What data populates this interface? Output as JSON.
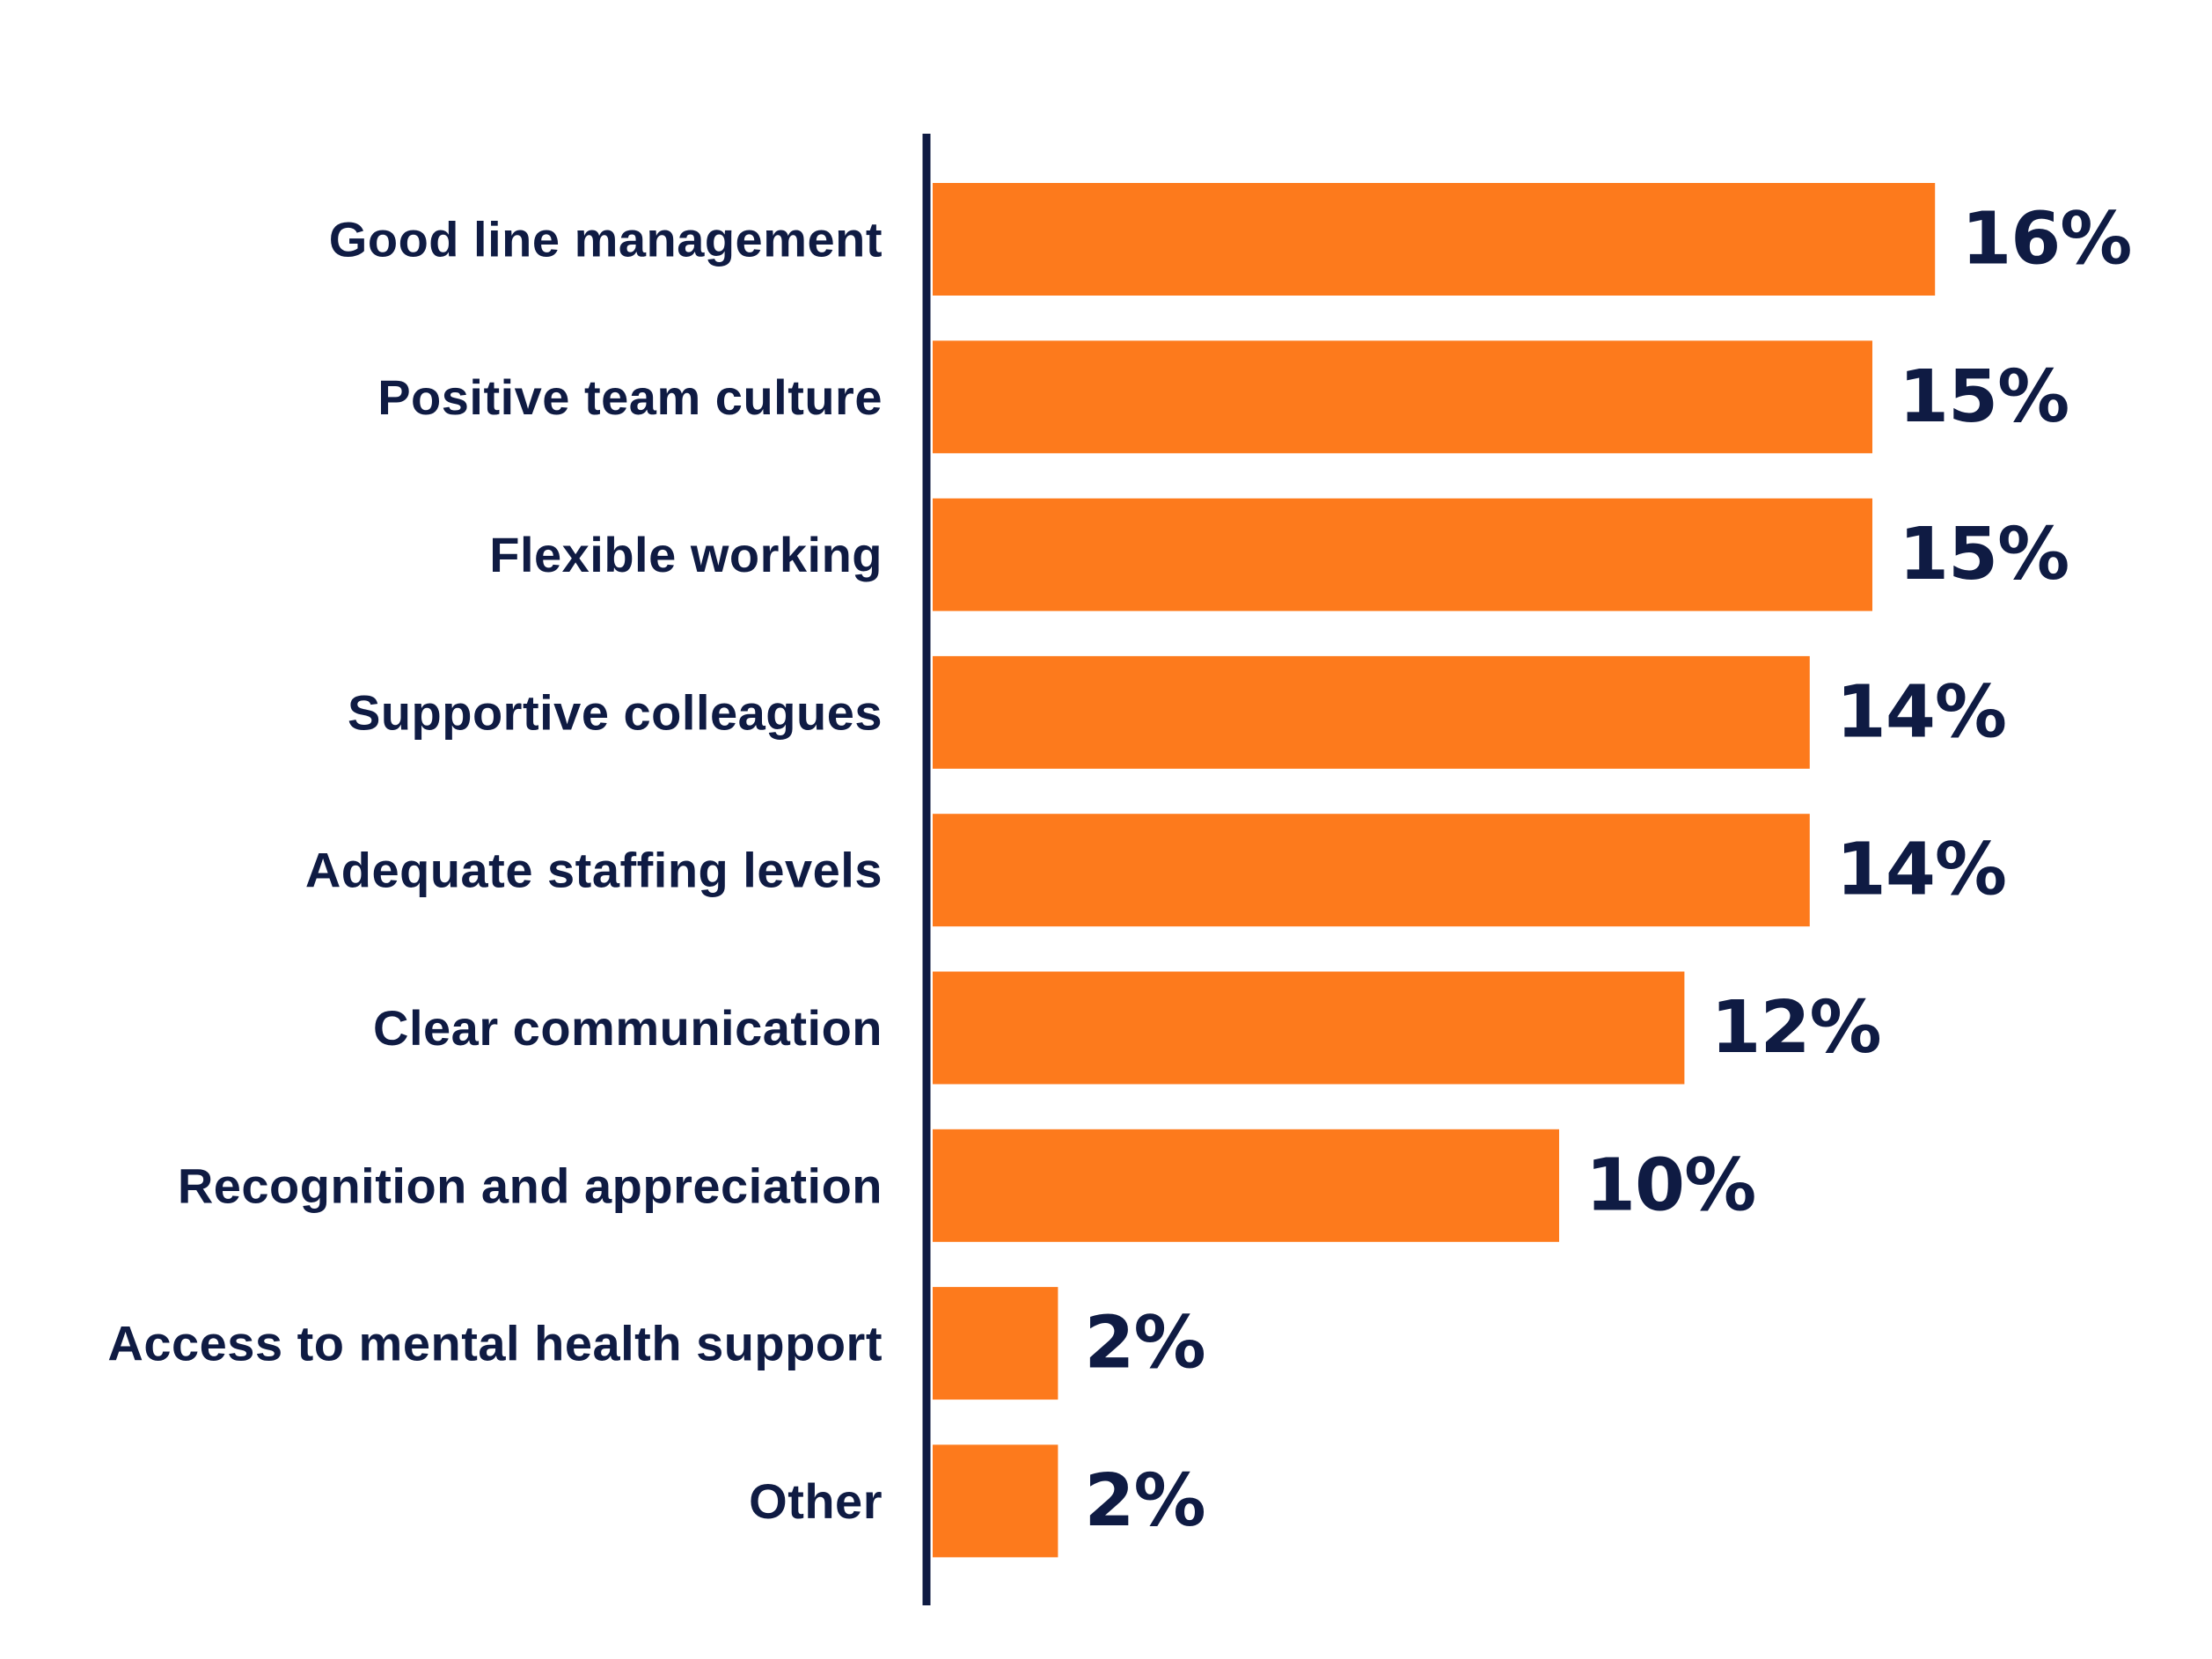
{
  "chart_data": {
    "type": "bar",
    "orientation": "horizontal",
    "title": "",
    "xlabel": "",
    "ylabel": "",
    "xlim": [
      0,
      16
    ],
    "grid": false,
    "legend": "none",
    "categories": [
      "Good line management",
      "Positive team culture",
      "Flexible working",
      "Supportive colleagues",
      "Adequate staffing levels",
      "Clear communication",
      "Recognition and appreciation",
      "Access to mental health support",
      "Other"
    ],
    "values": [
      16,
      15,
      15,
      14,
      14,
      12,
      10,
      2,
      2
    ],
    "value_labels": [
      "16%",
      "15%",
      "15%",
      "14%",
      "14%",
      "12%",
      "10%",
      "2%",
      "2%"
    ],
    "colors": {
      "bar": "#FD7A1C",
      "text": "#0F1B43",
      "axis": "#0F1B43",
      "background": "#FFFFFF"
    }
  }
}
